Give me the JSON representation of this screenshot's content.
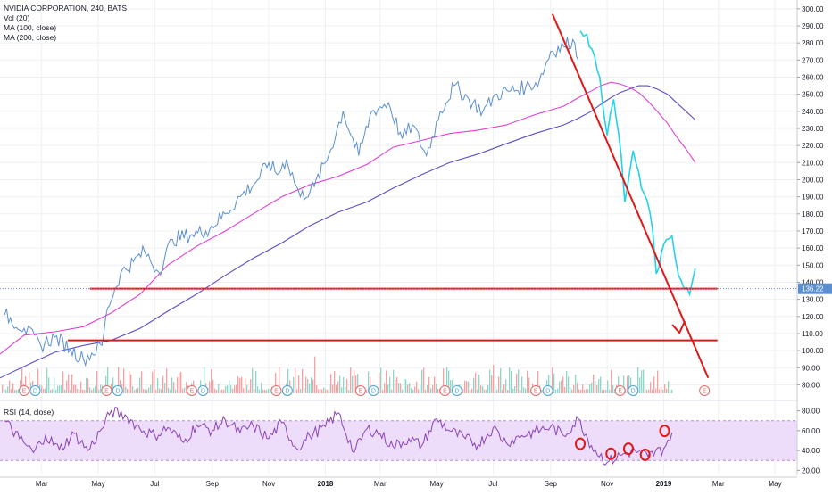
{
  "header": {
    "symbol_line": "NVIDIA CORPORATION, 240, BATS",
    "vol": "Vol (20)",
    "ma100": "MA (100, close)",
    "ma200": "MA (200, close)",
    "rsi": "RSI (14, close)"
  },
  "colors": {
    "price": "#5b8fd0",
    "price_recent": "#23d3e8",
    "ma100": "#e040d8",
    "ma200": "#5a4fc8",
    "drawing": "#e01818",
    "rsi": "#8a44b8",
    "rsi_band": "#eeddfa",
    "vol_up": "#8fd6c8",
    "vol_down": "#f3a3a3",
    "last_price_tag": "#5b8fd0"
  },
  "chart_data": {
    "type": "line",
    "title": "NVIDIA CORPORATION, 240, BATS",
    "price_axis": {
      "ylim": [
        75,
        302
      ],
      "ticks": [
        "80.00",
        "90.00",
        "100.00",
        "110.00",
        "120.00",
        "130.00",
        "140.00",
        "150.00",
        "160.00",
        "170.00",
        "180.00",
        "190.00",
        "200.00",
        "210.00",
        "220.00",
        "230.00",
        "240.00",
        "250.00",
        "260.00",
        "270.00",
        "280.00",
        "290.00",
        "300.00"
      ]
    },
    "time_axis": {
      "labels": [
        "Mar",
        "May",
        "Jul",
        "Sep",
        "Nov",
        "2018",
        "Mar",
        "May",
        "Jul",
        "Sep",
        "Nov",
        "2019",
        "Mar",
        "May"
      ],
      "range": [
        "2017-01-15",
        "2019-05-25"
      ]
    },
    "last_price": {
      "value": 136.22,
      "label": "136.22"
    },
    "series": [
      {
        "name": "NVIDIA CORPORATION",
        "key": "price",
        "x": [
          "2017-01-20",
          "2017-02-10",
          "2017-02-28",
          "2017-03-15",
          "2017-04-01",
          "2017-04-15",
          "2017-05-05",
          "2017-05-11",
          "2017-05-25",
          "2017-06-08",
          "2017-06-20",
          "2017-07-05",
          "2017-07-20",
          "2017-08-10",
          "2017-08-25",
          "2017-09-15",
          "2017-10-01",
          "2017-10-20",
          "2017-11-01",
          "2017-11-10",
          "2017-11-20",
          "2017-12-05",
          "2017-12-20",
          "2018-01-05",
          "2018-01-20",
          "2018-02-06",
          "2018-02-20",
          "2018-03-10",
          "2018-03-25",
          "2018-04-05",
          "2018-04-20",
          "2018-05-05",
          "2018-05-20",
          "2018-06-05",
          "2018-06-20",
          "2018-07-05",
          "2018-07-20",
          "2018-08-05",
          "2018-08-20",
          "2018-09-01",
          "2018-09-15",
          "2018-09-25",
          "2018-10-01"
        ],
        "y": [
          121,
          113,
          103,
          108,
          101,
          95,
          103,
          125,
          145,
          152,
          158,
          146,
          165,
          168,
          170,
          180,
          190,
          200,
          210,
          203,
          212,
          190,
          196,
          215,
          240,
          214,
          240,
          245,
          224,
          232,
          214,
          240,
          255,
          247,
          240,
          250,
          252,
          254,
          258,
          275,
          278,
          282,
          270
        ]
      },
      {
        "name": "NVIDIA CORPORATION",
        "key": "price_recent",
        "x": [
          "2018-10-03",
          "2018-10-10",
          "2018-10-24",
          "2018-11-01",
          "2018-11-08",
          "2018-11-16",
          "2018-11-20",
          "2018-11-29",
          "2018-12-08",
          "2018-12-14",
          "2018-12-20",
          "2018-12-24",
          "2019-01-04",
          "2019-01-10",
          "2019-01-17",
          "2019-01-29",
          "2019-02-04"
        ],
        "y": [
          287,
          285,
          260,
          226,
          247,
          215,
          187,
          217,
          195,
          188,
          171,
          145,
          165,
          167,
          144,
          133,
          148
        ]
      },
      {
        "name": "MA (100, close)",
        "key": "ma100",
        "x": [
          "2017-01-15",
          "2017-02-10",
          "2017-03-15",
          "2017-04-15",
          "2017-05-15",
          "2017-06-15",
          "2017-07-15",
          "2017-08-15",
          "2017-09-15",
          "2017-10-15",
          "2017-11-15",
          "2017-12-15",
          "2018-01-15",
          "2018-02-15",
          "2018-03-15",
          "2018-04-15",
          "2018-05-15",
          "2018-06-15",
          "2018-07-15",
          "2018-08-15",
          "2018-09-15",
          "2018-10-01",
          "2018-10-15",
          "2018-10-25",
          "2018-11-05",
          "2018-11-15",
          "2018-11-25",
          "2018-12-05",
          "2018-12-15",
          "2018-12-25",
          "2019-01-05",
          "2019-01-15",
          "2019-01-25",
          "2019-02-04"
        ],
        "y": [
          98,
          109,
          111,
          114,
          122,
          133,
          150,
          161,
          170,
          180,
          190,
          197,
          202,
          209,
          219,
          223,
          227,
          229,
          232,
          238,
          243,
          248,
          252,
          255,
          257,
          256,
          254,
          251,
          246,
          240,
          233,
          225,
          218,
          210
        ]
      },
      {
        "name": "MA (200, close)",
        "key": "ma200",
        "x": [
          "2017-01-15",
          "2017-02-15",
          "2017-03-15",
          "2017-04-15",
          "2017-05-15",
          "2017-06-15",
          "2017-07-15",
          "2017-08-15",
          "2017-09-15",
          "2017-10-15",
          "2017-11-15",
          "2017-12-15",
          "2018-01-15",
          "2018-02-15",
          "2018-03-15",
          "2018-04-15",
          "2018-05-15",
          "2018-06-15",
          "2018-07-15",
          "2018-08-15",
          "2018-09-15",
          "2018-10-01",
          "2018-10-15",
          "2018-10-25",
          "2018-11-05",
          "2018-11-15",
          "2018-11-25",
          "2018-12-05",
          "2018-12-15",
          "2018-12-25",
          "2019-01-05",
          "2019-01-15",
          "2019-01-25",
          "2019-02-04"
        ],
        "y": [
          84,
          92,
          99,
          103,
          106,
          113,
          123,
          133,
          144,
          154,
          163,
          173,
          181,
          187,
          195,
          203,
          210,
          215,
          221,
          227,
          232,
          236,
          240,
          244,
          248,
          251,
          253,
          255,
          255,
          253,
          250,
          245,
          240,
          235
        ]
      }
    ],
    "trendlines": [
      {
        "from": [
          "2018-09-03",
          297
        ],
        "to": [
          "2019-02-18",
          84
        ]
      },
      {
        "from": [
          "2017-04-22",
          136.22
        ],
        "to": [
          "2019-02-28",
          136.22
        ]
      },
      {
        "from": [
          "2017-03-29",
          106
        ],
        "to": [
          "2019-02-28",
          106
        ]
      }
    ],
    "earnings_markers": [
      "2017-02-10",
      "2017-05-10",
      "2017-08-10",
      "2017-11-09",
      "2018-02-08",
      "2018-05-10",
      "2018-08-16",
      "2018-11-15",
      "2019-02-14"
    ],
    "dividend_markers": [
      "2017-02-22",
      "2017-05-22",
      "2017-08-22",
      "2017-11-21",
      "2018-02-22",
      "2018-05-23",
      "2018-08-29",
      "2018-11-29"
    ],
    "rsi": {
      "name": "RSI (14, close)",
      "ylim": [
        15,
        85
      ],
      "ticks": [
        "20.00",
        "40.00",
        "60.00",
        "80.00"
      ],
      "band": [
        30,
        70
      ],
      "x": [
        "2017-01-20",
        "2017-02-05",
        "2017-02-20",
        "2017-03-05",
        "2017-03-20",
        "2017-04-05",
        "2017-04-20",
        "2017-05-05",
        "2017-05-15",
        "2017-06-01",
        "2017-06-15",
        "2017-07-01",
        "2017-07-15",
        "2017-08-01",
        "2017-08-15",
        "2017-09-01",
        "2017-09-15",
        "2017-10-01",
        "2017-10-15",
        "2017-11-01",
        "2017-11-15",
        "2017-12-01",
        "2017-12-15",
        "2018-01-01",
        "2018-01-15",
        "2018-02-01",
        "2018-02-15",
        "2018-03-01",
        "2018-03-15",
        "2018-04-01",
        "2018-04-15",
        "2018-05-01",
        "2018-05-15",
        "2018-06-01",
        "2018-06-15",
        "2018-07-01",
        "2018-07-15",
        "2018-08-01",
        "2018-08-15",
        "2018-09-01",
        "2018-09-15",
        "2018-10-01",
        "2018-10-15",
        "2018-11-01",
        "2018-11-15",
        "2018-12-01",
        "2018-12-15",
        "2019-01-01",
        "2019-01-10"
      ],
      "y": [
        70,
        52,
        38,
        55,
        41,
        57,
        40,
        62,
        80,
        74,
        62,
        55,
        63,
        48,
        66,
        60,
        71,
        58,
        65,
        52,
        68,
        42,
        55,
        64,
        78,
        38,
        62,
        57,
        44,
        52,
        45,
        72,
        60,
        52,
        46,
        63,
        48,
        55,
        59,
        64,
        55,
        72,
        45,
        28,
        35,
        40,
        34,
        42,
        58
      ],
      "annotations": [
        "2018-10-03",
        "2018-11-05",
        "2018-11-24",
        "2018-12-12",
        "2019-01-02"
      ]
    }
  }
}
